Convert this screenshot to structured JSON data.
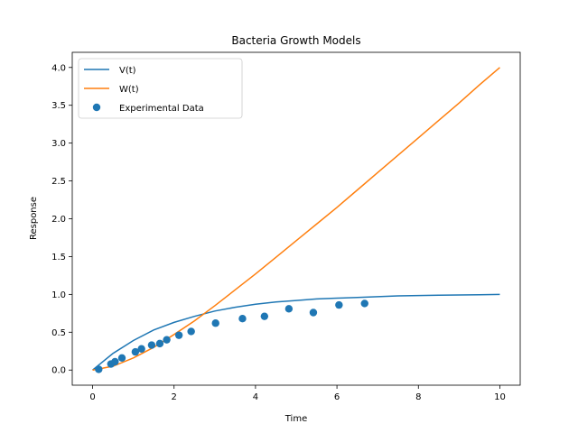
{
  "chart_data": {
    "type": "line",
    "title": "Bacteria Growth Models",
    "xlabel": "Time",
    "ylabel": "Response",
    "xlim": [
      -0.5,
      10.5
    ],
    "ylim": [
      -0.2,
      4.2
    ],
    "xticks": [
      "0",
      "2",
      "4",
      "6",
      "8",
      "10"
    ],
    "yticks": [
      "0.0",
      "0.5",
      "1.0",
      "1.5",
      "2.0",
      "2.5",
      "3.0",
      "3.5",
      "4.0"
    ],
    "grid": false,
    "legend_position": "top-left",
    "series": [
      {
        "name": "V(t)",
        "kind": "line",
        "color": "#1f77b4",
        "x": [
          0,
          0.5,
          1,
          1.5,
          2,
          2.5,
          3,
          3.5,
          4,
          4.5,
          5,
          5.5,
          6,
          6.5,
          7,
          7.5,
          8,
          8.5,
          9,
          9.5,
          10
        ],
        "y": [
          0.0,
          0.22,
          0.39,
          0.53,
          0.63,
          0.71,
          0.78,
          0.83,
          0.87,
          0.9,
          0.92,
          0.94,
          0.95,
          0.96,
          0.97,
          0.98,
          0.985,
          0.99,
          0.993,
          0.996,
          1.0
        ]
      },
      {
        "name": "W(t)",
        "kind": "line",
        "color": "#ff7f0e",
        "x": [
          0,
          0.5,
          1,
          1.5,
          2,
          2.5,
          3,
          3.5,
          4,
          4.5,
          5,
          5.5,
          6,
          6.5,
          7,
          7.5,
          8,
          8.5,
          9,
          9.5,
          10
        ],
        "y": [
          0.0,
          0.05,
          0.16,
          0.3,
          0.47,
          0.65,
          0.85,
          1.06,
          1.27,
          1.49,
          1.71,
          1.93,
          2.15,
          2.38,
          2.61,
          2.84,
          3.07,
          3.3,
          3.53,
          3.77,
          4.0
        ]
      },
      {
        "name": "Experimental Data",
        "kind": "scatter",
        "color": "#1f77b4",
        "x": [
          0.15,
          0.45,
          0.55,
          0.72,
          1.05,
          1.2,
          1.45,
          1.65,
          1.82,
          2.12,
          2.42,
          3.02,
          3.68,
          4.22,
          4.82,
          5.42,
          6.05,
          6.68
        ],
        "y": [
          0.01,
          0.08,
          0.11,
          0.16,
          0.24,
          0.28,
          0.33,
          0.35,
          0.4,
          0.46,
          0.51,
          0.62,
          0.68,
          0.71,
          0.81,
          0.76,
          0.86,
          0.88
        ]
      }
    ]
  }
}
